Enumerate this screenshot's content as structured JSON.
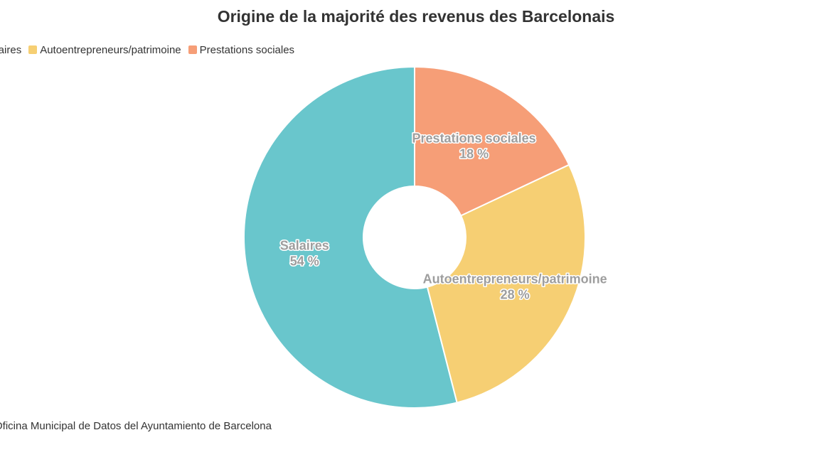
{
  "chart_data": {
    "type": "pie",
    "title": "Origine de la majorité des revenus des Barcelonais",
    "legend_position": "top-left",
    "hole": 0.3,
    "slices": [
      {
        "name": "Salaires",
        "value": 54,
        "label": "54 %",
        "color": "#69c6cc"
      },
      {
        "name": "Autoentrepreneurs/patrimoine",
        "value": 28,
        "label": "28 %",
        "color": "#f6cf73"
      },
      {
        "name": "Prestations sociales",
        "value": 18,
        "label": "18 %",
        "color": "#f69e77"
      }
    ],
    "source": "Oficina Municipal de Datos del Ayuntamiento de Barcelona"
  }
}
